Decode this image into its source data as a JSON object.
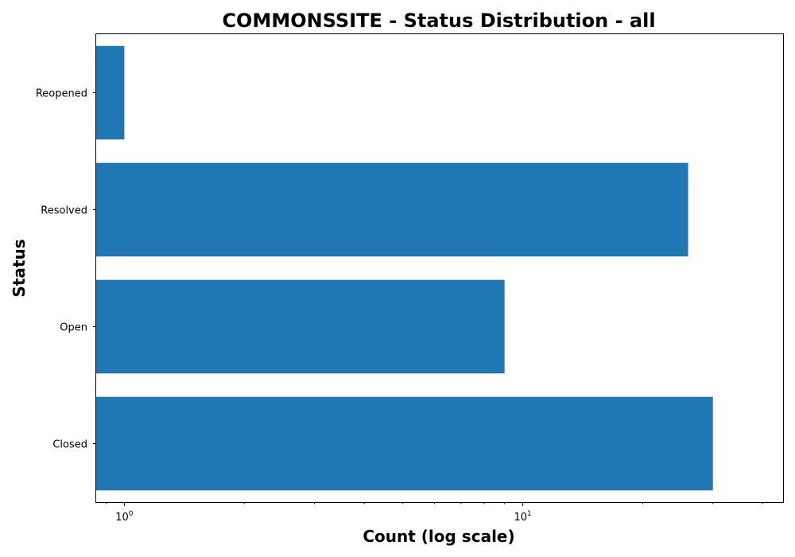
{
  "chart_data": {
    "type": "bar",
    "orientation": "horizontal",
    "title": "COMMONSSITE - Status Distribution - all",
    "xlabel": "Count (log scale)",
    "ylabel": "Status",
    "x_scale": "log",
    "xlim": [
      0.85,
      45
    ],
    "categories": [
      "Closed",
      "Open",
      "Resolved",
      "Reopened"
    ],
    "values": [
      30,
      9,
      26,
      1
    ],
    "x_ticks": [
      {
        "value": 1,
        "base": "10",
        "exponent": "0"
      },
      {
        "value": 10,
        "base": "10",
        "exponent": "1"
      }
    ],
    "bar_color": "#1f77b4",
    "grid": false,
    "legend": "none"
  }
}
